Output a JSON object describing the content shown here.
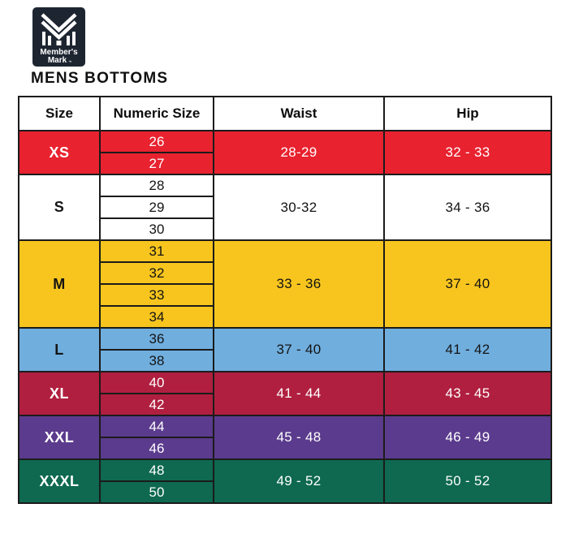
{
  "logo": {
    "brand_line1": "Member's",
    "brand_line2": "Mark",
    "trademark": "™",
    "background_color": "#1d2531",
    "foreground_color": "#ffffff"
  },
  "title": "MENS BOTTOMS",
  "chart_data": {
    "type": "table",
    "title": "MENS BOTTOMS",
    "columns": [
      "Size",
      "Numeric Size",
      "Waist",
      "Hip"
    ],
    "rows": [
      {
        "size": "XS",
        "numeric_sizes": [
          "26",
          "27"
        ],
        "waist": "28-29",
        "hip": "32 - 33",
        "row_color": "#e8222f",
        "text_color": "#ffffff"
      },
      {
        "size": "S",
        "numeric_sizes": [
          "28",
          "29",
          "30"
        ],
        "waist": "30-32",
        "hip": "34 - 36",
        "row_color": "#ffffff",
        "text_color": "#141414"
      },
      {
        "size": "M",
        "numeric_sizes": [
          "31",
          "32",
          "33",
          "34"
        ],
        "waist": "33 - 36",
        "hip": "37 - 40",
        "row_color": "#f7c51e",
        "text_color": "#141414"
      },
      {
        "size": "L",
        "numeric_sizes": [
          "36",
          "38"
        ],
        "waist": "37 - 40",
        "hip": "41 - 42",
        "row_color": "#70aede",
        "text_color": "#141414"
      },
      {
        "size": "XL",
        "numeric_sizes": [
          "40",
          "42"
        ],
        "waist": "41 - 44",
        "hip": "43 - 45",
        "row_color": "#b01f3f",
        "text_color": "#ffffff"
      },
      {
        "size": "XXL",
        "numeric_sizes": [
          "44",
          "46"
        ],
        "waist": "45 - 48",
        "hip": "46 - 49",
        "row_color": "#5b3b8d",
        "text_color": "#ffffff"
      },
      {
        "size": "XXXL",
        "numeric_sizes": [
          "48",
          "50"
        ],
        "waist": "49 - 52",
        "hip": "50 - 52",
        "row_color": "#0e6950",
        "text_color": "#ffffff"
      }
    ]
  }
}
